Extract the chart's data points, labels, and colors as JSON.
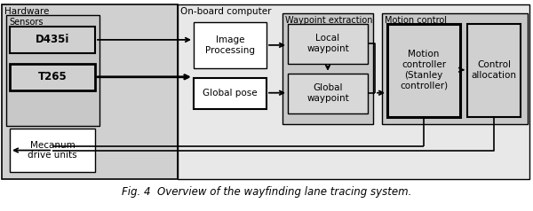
{
  "title": "Fig. 4  Overview of the wayfinding lane tracing system.",
  "bg_color": "#ffffff",
  "gray_light": "#d3d3d3",
  "gray_med": "#c0c0c0",
  "gray_dark": "#b0b0b0",
  "white": "#ffffff",
  "section_labels": {
    "hardware": "Hardware",
    "onboard": "On-board computer",
    "waypoint": "Waypoint extraction",
    "motion": "Motion control",
    "sensors": "Sensors"
  },
  "layout": {
    "fig_w": 6.0,
    "fig_h": 2.38,
    "dpi": 100
  }
}
